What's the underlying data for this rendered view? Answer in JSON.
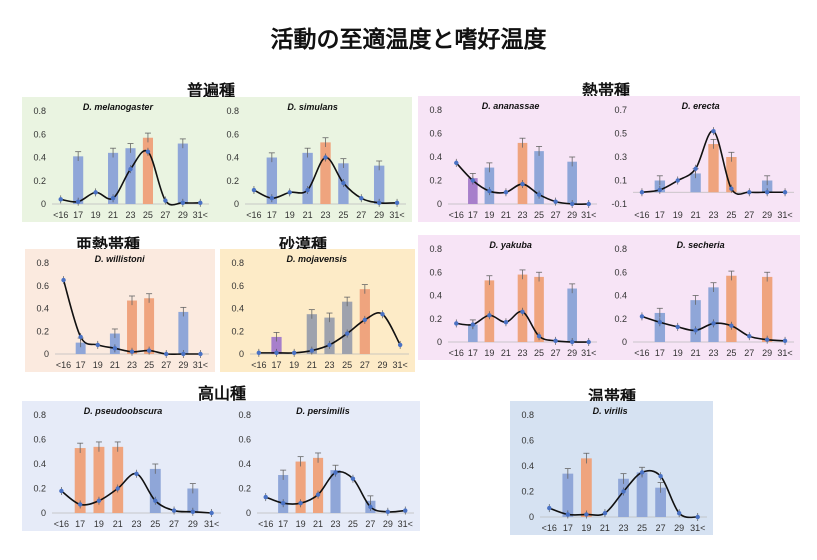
{
  "title": "活動の至適温度と嗜好温度",
  "groups": {
    "cosmopolitan": "普遍種",
    "tropical": "熱帯種",
    "subtropical": "亜熱帯種",
    "desert": "砂漠種",
    "alpine": "高山種",
    "temperate": "温帯種"
  },
  "colors": {
    "bar_blue": "#8fa6d8",
    "bar_orange": "#efa47e",
    "bar_purple": "#a77fcb",
    "bar_gray": "#9ea2ad",
    "line": "#111111",
    "marker": "#4a72c4",
    "bg_green": "#eaf4e1",
    "bg_pink": "#f7e4f6",
    "bg_peach": "#fbeadf",
    "bg_yellow": "#fdebc7",
    "bg_blue": "#e6ebf8",
    "bg_lightblue": "#d6e2f2"
  },
  "chart_data": [
    {
      "type": "bar",
      "title": "D. melanogaster",
      "x": [
        "<16",
        "17",
        "19",
        "21",
        "23",
        "25",
        "27",
        "29",
        "31<"
      ],
      "ylim": [
        0,
        0.8
      ],
      "yticks": [
        "0",
        "0.2",
        "0.4",
        "0.6",
        "0.8"
      ],
      "bars": [
        {
          "x": "17",
          "value": 0.41,
          "color": "blue"
        },
        {
          "x": "21",
          "value": 0.44,
          "color": "blue"
        },
        {
          "x": "23",
          "value": 0.48,
          "color": "blue"
        },
        {
          "x": "25",
          "value": 0.57,
          "color": "orange"
        },
        {
          "x": "29",
          "value": 0.52,
          "color": "blue"
        }
      ],
      "line": [
        0.04,
        0.02,
        0.1,
        0.05,
        0.3,
        0.45,
        0.03,
        0.01,
        0.01
      ]
    },
    {
      "type": "bar",
      "title": "D. simulans",
      "x": [
        "<16",
        "17",
        "19",
        "21",
        "23",
        "25",
        "27",
        "29",
        "31<"
      ],
      "ylim": [
        0,
        0.8
      ],
      "yticks": [
        "0",
        "0.2",
        "0.4",
        "0.6",
        "0.8"
      ],
      "bars": [
        {
          "x": "17",
          "value": 0.4,
          "color": "blue"
        },
        {
          "x": "21",
          "value": 0.44,
          "color": "blue"
        },
        {
          "x": "23",
          "value": 0.53,
          "color": "orange"
        },
        {
          "x": "25",
          "value": 0.35,
          "color": "blue"
        },
        {
          "x": "29",
          "value": 0.33,
          "color": "blue"
        }
      ],
      "line": [
        0.12,
        0.05,
        0.1,
        0.12,
        0.4,
        0.18,
        0.05,
        0.01,
        0.01
      ]
    },
    {
      "type": "bar",
      "title": "D. ananassae",
      "x": [
        "<16",
        "17",
        "19",
        "21",
        "23",
        "25",
        "27",
        "29",
        "31<"
      ],
      "ylim": [
        0,
        0.8
      ],
      "yticks": [
        "0",
        "0.2",
        "0.4",
        "0.6",
        "0.8"
      ],
      "bars": [
        {
          "x": "17",
          "value": 0.22,
          "color": "purple"
        },
        {
          "x": "19",
          "value": 0.31,
          "color": "blue"
        },
        {
          "x": "23",
          "value": 0.52,
          "color": "orange"
        },
        {
          "x": "25",
          "value": 0.45,
          "color": "blue"
        },
        {
          "x": "29",
          "value": 0.36,
          "color": "blue"
        }
      ],
      "line": [
        0.35,
        0.2,
        0.11,
        0.1,
        0.17,
        0.08,
        0.02,
        0.0,
        0.0
      ]
    },
    {
      "type": "bar",
      "title": "D. erecta",
      "x": [
        "<16",
        "17",
        "19",
        "21",
        "23",
        "25",
        "27",
        "29",
        "31<"
      ],
      "ylim": [
        -0.1,
        0.7
      ],
      "yticks": [
        "-0.1",
        "0.1",
        "0.3",
        "0.5",
        "0.7"
      ],
      "bars": [
        {
          "x": "17",
          "value": 0.1,
          "color": "blue"
        },
        {
          "x": "21",
          "value": 0.16,
          "color": "blue"
        },
        {
          "x": "23",
          "value": 0.41,
          "color": "orange"
        },
        {
          "x": "25",
          "value": 0.3,
          "color": "orange"
        },
        {
          "x": "29",
          "value": 0.1,
          "color": "blue"
        }
      ],
      "line": [
        0.0,
        0.02,
        0.1,
        0.2,
        0.52,
        0.03,
        0.0,
        0.0,
        0.0
      ]
    },
    {
      "type": "bar",
      "title": "D. willistoni",
      "x": [
        "<16",
        "17",
        "19",
        "21",
        "23",
        "25",
        "27",
        "29",
        "31<"
      ],
      "ylim": [
        0,
        0.8
      ],
      "yticks": [
        "0",
        "0.2",
        "0.4",
        "0.6",
        "0.8"
      ],
      "bars": [
        {
          "x": "17",
          "value": 0.1,
          "color": "blue"
        },
        {
          "x": "21",
          "value": 0.18,
          "color": "blue"
        },
        {
          "x": "23",
          "value": 0.47,
          "color": "orange"
        },
        {
          "x": "25",
          "value": 0.49,
          "color": "orange"
        },
        {
          "x": "29",
          "value": 0.37,
          "color": "blue"
        }
      ],
      "line": [
        0.65,
        0.15,
        0.08,
        0.05,
        0.02,
        0.03,
        0.0,
        0.0,
        0.0
      ]
    },
    {
      "type": "bar",
      "title": "D. mojavensis",
      "x": [
        "<16",
        "17",
        "19",
        "21",
        "23",
        "25",
        "27",
        "29",
        "31<"
      ],
      "ylim": [
        0,
        0.8
      ],
      "yticks": [
        "0",
        "0.2",
        "0.4",
        "0.6",
        "0.8"
      ],
      "bars": [
        {
          "x": "17",
          "value": 0.15,
          "color": "purple"
        },
        {
          "x": "21",
          "value": 0.35,
          "color": "gray"
        },
        {
          "x": "23",
          "value": 0.32,
          "color": "gray"
        },
        {
          "x": "25",
          "value": 0.46,
          "color": "gray"
        },
        {
          "x": "27",
          "value": 0.57,
          "color": "orange"
        }
      ],
      "line": [
        0.01,
        0.01,
        0.01,
        0.03,
        0.08,
        0.18,
        0.3,
        0.35,
        0.08
      ]
    },
    {
      "type": "bar",
      "title": "D. yakuba",
      "x": [
        "<16",
        "17",
        "19",
        "21",
        "23",
        "25",
        "27",
        "29",
        "31<"
      ],
      "ylim": [
        0,
        0.8
      ],
      "yticks": [
        "0",
        "0.2",
        "0.4",
        "0.6",
        "0.8"
      ],
      "bars": [
        {
          "x": "17",
          "value": 0.15,
          "color": "blue"
        },
        {
          "x": "19",
          "value": 0.53,
          "color": "orange"
        },
        {
          "x": "23",
          "value": 0.58,
          "color": "orange"
        },
        {
          "x": "25",
          "value": 0.56,
          "color": "orange"
        },
        {
          "x": "29",
          "value": 0.46,
          "color": "blue"
        }
      ],
      "line": [
        0.16,
        0.15,
        0.23,
        0.17,
        0.26,
        0.05,
        0.01,
        0.0,
        0.0
      ]
    },
    {
      "type": "bar",
      "title": "D. secheria",
      "x": [
        "<16",
        "17",
        "19",
        "21",
        "23",
        "25",
        "27",
        "29",
        "31<"
      ],
      "ylim": [
        0,
        0.8
      ],
      "yticks": [
        "0",
        "0.2",
        "0.4",
        "0.6",
        "0.8"
      ],
      "bars": [
        {
          "x": "17",
          "value": 0.25,
          "color": "blue"
        },
        {
          "x": "21",
          "value": 0.36,
          "color": "blue"
        },
        {
          "x": "23",
          "value": 0.47,
          "color": "blue"
        },
        {
          "x": "25",
          "value": 0.57,
          "color": "orange"
        },
        {
          "x": "29",
          "value": 0.56,
          "color": "orange"
        }
      ],
      "line": [
        0.22,
        0.17,
        0.13,
        0.1,
        0.16,
        0.14,
        0.05,
        0.02,
        0.01
      ]
    },
    {
      "type": "bar",
      "title": "D. pseudoobscura",
      "x": [
        "<16",
        "17",
        "19",
        "21",
        "23",
        "25",
        "27",
        "29",
        "31<"
      ],
      "ylim": [
        0,
        0.8
      ],
      "yticks": [
        "0",
        "0.2",
        "0.4",
        "0.6",
        "0.8"
      ],
      "bars": [
        {
          "x": "17",
          "value": 0.53,
          "color": "orange"
        },
        {
          "x": "19",
          "value": 0.54,
          "color": "orange"
        },
        {
          "x": "21",
          "value": 0.54,
          "color": "orange"
        },
        {
          "x": "25",
          "value": 0.36,
          "color": "blue"
        },
        {
          "x": "29",
          "value": 0.2,
          "color": "blue"
        }
      ],
      "line": [
        0.18,
        0.07,
        0.1,
        0.2,
        0.32,
        0.1,
        0.02,
        0.01,
        0.0
      ]
    },
    {
      "type": "bar",
      "title": "D. persimilis",
      "x": [
        "<16",
        "17",
        "19",
        "21",
        "23",
        "25",
        "27",
        "29",
        "31<"
      ],
      "ylim": [
        0,
        0.8
      ],
      "yticks": [
        "0",
        "0.2",
        "0.4",
        "0.6",
        "0.8"
      ],
      "bars": [
        {
          "x": "17",
          "value": 0.31,
          "color": "blue"
        },
        {
          "x": "19",
          "value": 0.42,
          "color": "orange"
        },
        {
          "x": "21",
          "value": 0.45,
          "color": "orange"
        },
        {
          "x": "23",
          "value": 0.35,
          "color": "blue"
        },
        {
          "x": "27",
          "value": 0.1,
          "color": "blue"
        }
      ],
      "line": [
        0.13,
        0.08,
        0.08,
        0.15,
        0.33,
        0.28,
        0.05,
        0.01,
        0.02
      ]
    },
    {
      "type": "bar",
      "title": "D. virilis",
      "x": [
        "<16",
        "17",
        "19",
        "21",
        "23",
        "25",
        "27",
        "29",
        "31<"
      ],
      "ylim": [
        0,
        0.8
      ],
      "yticks": [
        "0",
        "0.2",
        "0.4",
        "0.6",
        "0.8"
      ],
      "bars": [
        {
          "x": "17",
          "value": 0.34,
          "color": "blue"
        },
        {
          "x": "19",
          "value": 0.46,
          "color": "orange"
        },
        {
          "x": "23",
          "value": 0.3,
          "color": "blue"
        },
        {
          "x": "25",
          "value": 0.35,
          "color": "blue"
        },
        {
          "x": "27",
          "value": 0.23,
          "color": "blue"
        }
      ],
      "line": [
        0.07,
        0.02,
        0.02,
        0.03,
        0.2,
        0.35,
        0.32,
        0.03,
        0.0
      ]
    }
  ]
}
